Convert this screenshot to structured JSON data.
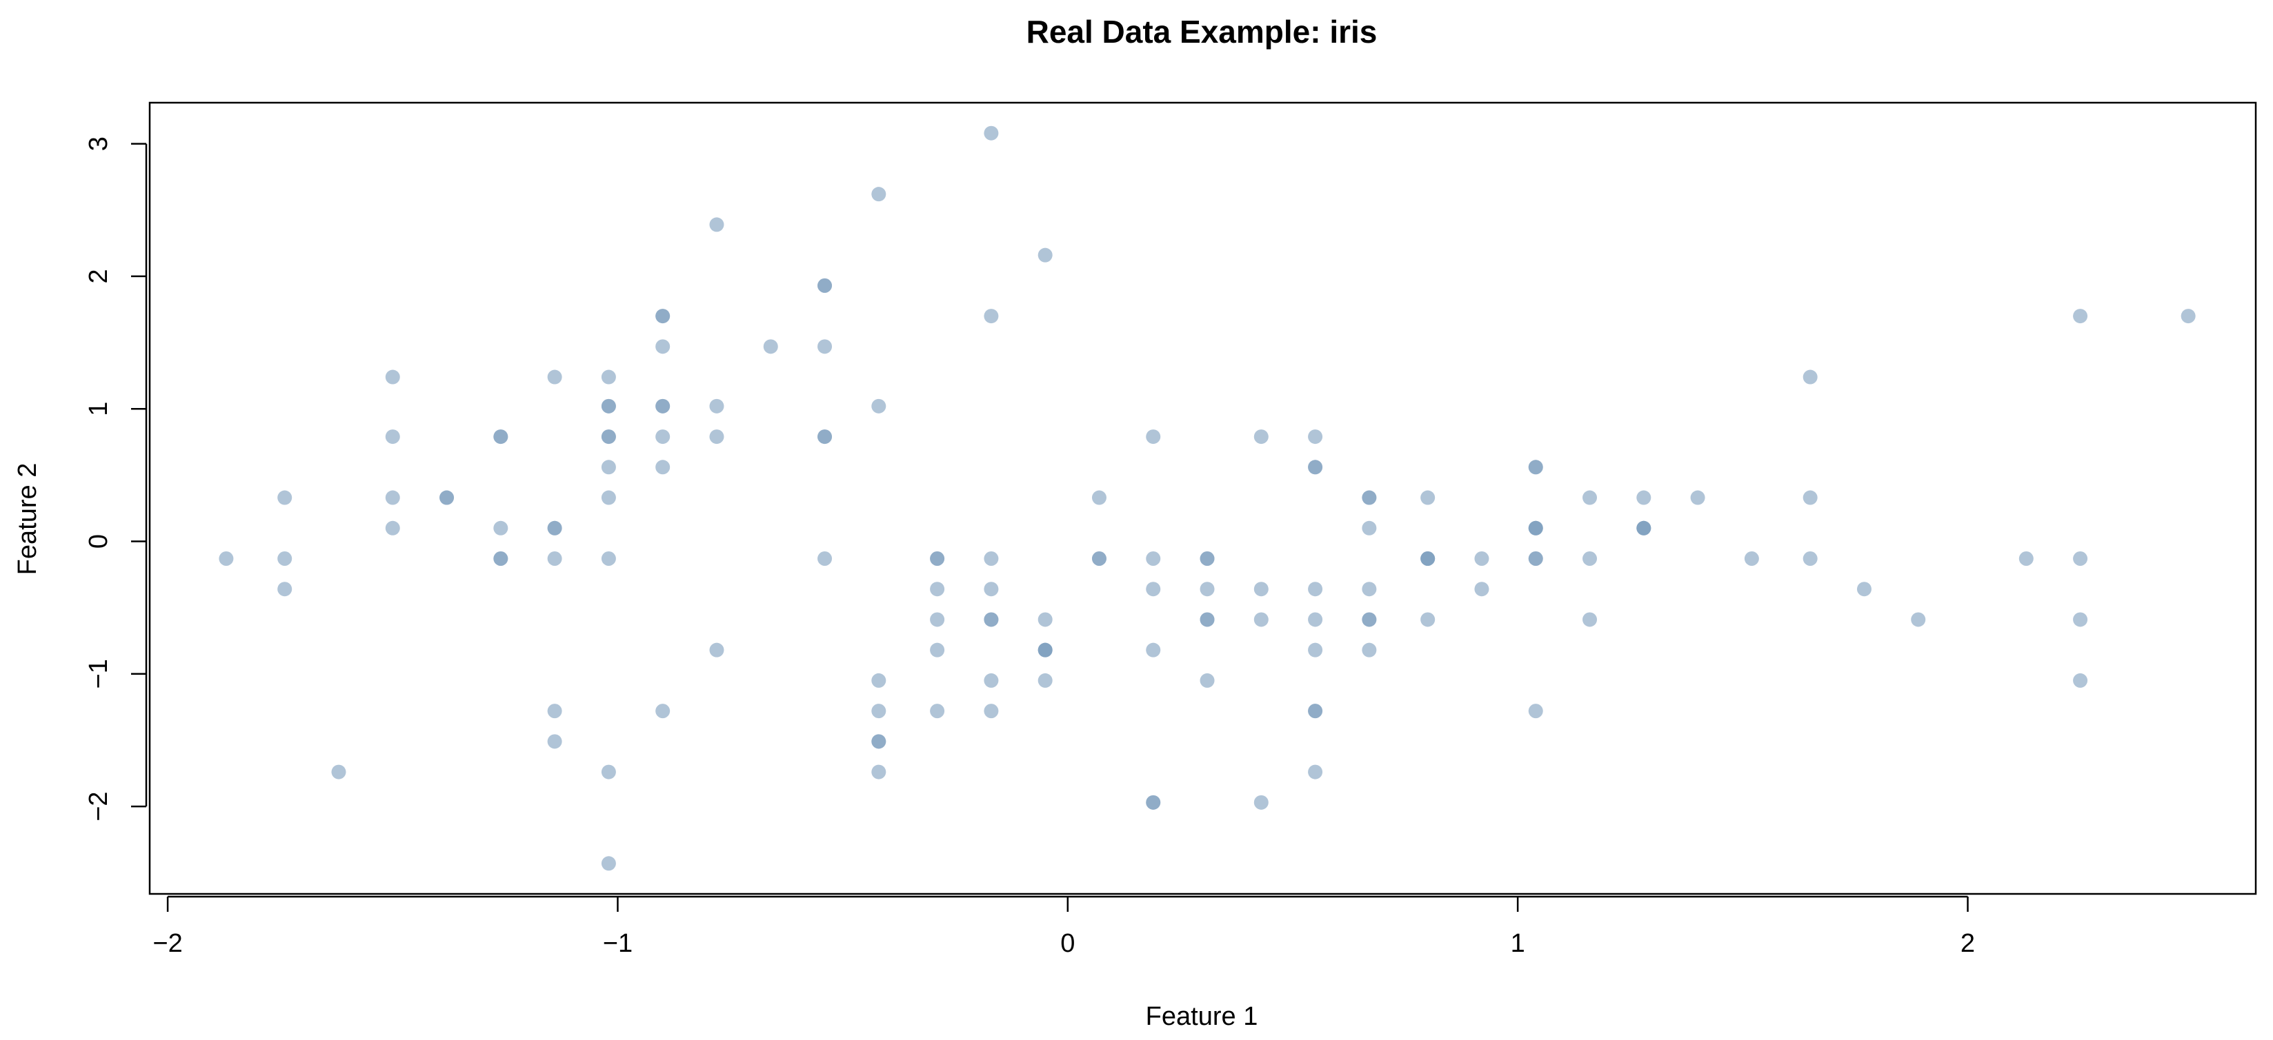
{
  "chart_data": {
    "type": "scatter",
    "title": "Real Data Example: iris",
    "xlabel": "Feature 1",
    "ylabel": "Feature 2",
    "xlim": [
      -2.04,
      2.64
    ],
    "ylim": [
      -2.66,
      3.31
    ],
    "x_ticks": [
      -2,
      -1,
      0,
      1,
      2
    ],
    "y_ticks": [
      -2,
      -1,
      0,
      1,
      2,
      3
    ],
    "grid": false,
    "legend": "none",
    "point_color": "#7b9cbd",
    "point_opacity": 0.6,
    "points": [
      {
        "x": -1.87,
        "y": -0.13
      },
      {
        "x": -1.74,
        "y": 0.33
      },
      {
        "x": -1.74,
        "y": -0.13
      },
      {
        "x": -1.74,
        "y": -0.36
      },
      {
        "x": -1.62,
        "y": -1.74
      },
      {
        "x": -1.5,
        "y": 1.24
      },
      {
        "x": -1.5,
        "y": 0.79
      },
      {
        "x": -1.5,
        "y": 0.33
      },
      {
        "x": -1.5,
        "y": 0.1
      },
      {
        "x": -1.38,
        "y": 0.33
      },
      {
        "x": -1.38,
        "y": 0.33
      },
      {
        "x": -1.26,
        "y": 0.79
      },
      {
        "x": -1.26,
        "y": 0.79
      },
      {
        "x": -1.26,
        "y": 0.1
      },
      {
        "x": -1.26,
        "y": -0.13
      },
      {
        "x": -1.26,
        "y": -0.13
      },
      {
        "x": -1.14,
        "y": 1.24
      },
      {
        "x": -1.14,
        "y": 0.1
      },
      {
        "x": -1.14,
        "y": 0.1
      },
      {
        "x": -1.14,
        "y": -0.13
      },
      {
        "x": -1.14,
        "y": -1.28
      },
      {
        "x": -1.14,
        "y": -1.51
      },
      {
        "x": -1.02,
        "y": 1.24
      },
      {
        "x": -1.02,
        "y": 1.02
      },
      {
        "x": -1.02,
        "y": 1.02
      },
      {
        "x": -1.02,
        "y": 0.79
      },
      {
        "x": -1.02,
        "y": 0.79
      },
      {
        "x": -1.02,
        "y": 0.56
      },
      {
        "x": -1.02,
        "y": 0.33
      },
      {
        "x": -1.02,
        "y": -0.13
      },
      {
        "x": -1.02,
        "y": -1.74
      },
      {
        "x": -1.02,
        "y": -2.43
      },
      {
        "x": -0.9,
        "y": 1.7
      },
      {
        "x": -0.9,
        "y": 1.7
      },
      {
        "x": -0.9,
        "y": 1.47
      },
      {
        "x": -0.9,
        "y": 1.02
      },
      {
        "x": -0.9,
        "y": 1.02
      },
      {
        "x": -0.9,
        "y": 0.79
      },
      {
        "x": -0.9,
        "y": 0.56
      },
      {
        "x": -0.9,
        "y": -1.28
      },
      {
        "x": -0.78,
        "y": 2.39
      },
      {
        "x": -0.78,
        "y": 1.02
      },
      {
        "x": -0.78,
        "y": 0.79
      },
      {
        "x": -0.78,
        "y": -0.82
      },
      {
        "x": -0.66,
        "y": 1.47
      },
      {
        "x": -0.54,
        "y": 1.93
      },
      {
        "x": -0.54,
        "y": 1.93
      },
      {
        "x": -0.54,
        "y": 1.47
      },
      {
        "x": -0.54,
        "y": 0.79
      },
      {
        "x": -0.54,
        "y": 0.79
      },
      {
        "x": -0.54,
        "y": -0.13
      },
      {
        "x": -0.42,
        "y": 2.62
      },
      {
        "x": -0.42,
        "y": 1.02
      },
      {
        "x": -0.42,
        "y": -1.05
      },
      {
        "x": -0.42,
        "y": -1.28
      },
      {
        "x": -0.42,
        "y": -1.51
      },
      {
        "x": -0.42,
        "y": -1.51
      },
      {
        "x": -0.42,
        "y": -1.74
      },
      {
        "x": -0.29,
        "y": -0.13
      },
      {
        "x": -0.29,
        "y": -0.13
      },
      {
        "x": -0.29,
        "y": -0.36
      },
      {
        "x": -0.29,
        "y": -0.59
      },
      {
        "x": -0.29,
        "y": -0.82
      },
      {
        "x": -0.29,
        "y": -1.28
      },
      {
        "x": -0.17,
        "y": 3.08
      },
      {
        "x": -0.17,
        "y": 1.7
      },
      {
        "x": -0.17,
        "y": -0.13
      },
      {
        "x": -0.17,
        "y": -0.36
      },
      {
        "x": -0.17,
        "y": -0.59
      },
      {
        "x": -0.17,
        "y": -0.59
      },
      {
        "x": -0.17,
        "y": -1.05
      },
      {
        "x": -0.17,
        "y": -1.28
      },
      {
        "x": -0.05,
        "y": 2.16
      },
      {
        "x": -0.05,
        "y": -0.59
      },
      {
        "x": -0.05,
        "y": -0.82
      },
      {
        "x": -0.05,
        "y": -0.82
      },
      {
        "x": -0.05,
        "y": -0.82
      },
      {
        "x": -0.05,
        "y": -1.05
      },
      {
        "x": 0.07,
        "y": 0.33
      },
      {
        "x": 0.07,
        "y": -0.13
      },
      {
        "x": 0.07,
        "y": -0.13
      },
      {
        "x": 0.19,
        "y": 0.79
      },
      {
        "x": 0.19,
        "y": -0.13
      },
      {
        "x": 0.19,
        "y": -0.36
      },
      {
        "x": 0.19,
        "y": -0.82
      },
      {
        "x": 0.19,
        "y": -1.97
      },
      {
        "x": 0.19,
        "y": -1.97
      },
      {
        "x": 0.31,
        "y": -0.13
      },
      {
        "x": 0.31,
        "y": -0.13
      },
      {
        "x": 0.31,
        "y": -0.36
      },
      {
        "x": 0.31,
        "y": -0.59
      },
      {
        "x": 0.31,
        "y": -0.59
      },
      {
        "x": 0.31,
        "y": -1.05
      },
      {
        "x": 0.43,
        "y": 0.79
      },
      {
        "x": 0.43,
        "y": -0.36
      },
      {
        "x": 0.43,
        "y": -0.59
      },
      {
        "x": 0.43,
        "y": -1.97
      },
      {
        "x": 0.55,
        "y": 0.79
      },
      {
        "x": 0.55,
        "y": 0.56
      },
      {
        "x": 0.55,
        "y": 0.56
      },
      {
        "x": 0.55,
        "y": -0.36
      },
      {
        "x": 0.55,
        "y": -0.59
      },
      {
        "x": 0.55,
        "y": -0.82
      },
      {
        "x": 0.55,
        "y": -1.28
      },
      {
        "x": 0.55,
        "y": -1.28
      },
      {
        "x": 0.55,
        "y": -1.74
      },
      {
        "x": 0.67,
        "y": 0.33
      },
      {
        "x": 0.67,
        "y": 0.33
      },
      {
        "x": 0.67,
        "y": 0.1
      },
      {
        "x": 0.67,
        "y": -0.36
      },
      {
        "x": 0.67,
        "y": -0.59
      },
      {
        "x": 0.67,
        "y": -0.59
      },
      {
        "x": 0.67,
        "y": -0.82
      },
      {
        "x": 0.8,
        "y": 0.33
      },
      {
        "x": 0.8,
        "y": -0.13
      },
      {
        "x": 0.8,
        "y": -0.13
      },
      {
        "x": 0.8,
        "y": -0.13
      },
      {
        "x": 0.8,
        "y": -0.59
      },
      {
        "x": 0.92,
        "y": -0.13
      },
      {
        "x": 0.92,
        "y": -0.36
      },
      {
        "x": 1.04,
        "y": 0.56
      },
      {
        "x": 1.04,
        "y": 0.56
      },
      {
        "x": 1.04,
        "y": 0.1
      },
      {
        "x": 1.04,
        "y": 0.1
      },
      {
        "x": 1.04,
        "y": 0.1
      },
      {
        "x": 1.04,
        "y": -0.13
      },
      {
        "x": 1.04,
        "y": -0.13
      },
      {
        "x": 1.04,
        "y": -1.28
      },
      {
        "x": 1.16,
        "y": 0.33
      },
      {
        "x": 1.16,
        "y": -0.13
      },
      {
        "x": 1.16,
        "y": -0.59
      },
      {
        "x": 1.28,
        "y": 0.33
      },
      {
        "x": 1.28,
        "y": 0.1
      },
      {
        "x": 1.28,
        "y": 0.1
      },
      {
        "x": 1.28,
        "y": 0.1
      },
      {
        "x": 1.4,
        "y": 0.33
      },
      {
        "x": 1.52,
        "y": -0.13
      },
      {
        "x": 1.65,
        "y": 1.24
      },
      {
        "x": 1.65,
        "y": 0.33
      },
      {
        "x": 1.65,
        "y": -0.13
      },
      {
        "x": 1.77,
        "y": -0.36
      },
      {
        "x": 1.89,
        "y": -0.59
      },
      {
        "x": 2.13,
        "y": -0.13
      },
      {
        "x": 2.25,
        "y": 1.7
      },
      {
        "x": 2.25,
        "y": -0.13
      },
      {
        "x": 2.25,
        "y": -0.59
      },
      {
        "x": 2.25,
        "y": -1.05
      },
      {
        "x": 2.49,
        "y": 1.7
      }
    ]
  }
}
